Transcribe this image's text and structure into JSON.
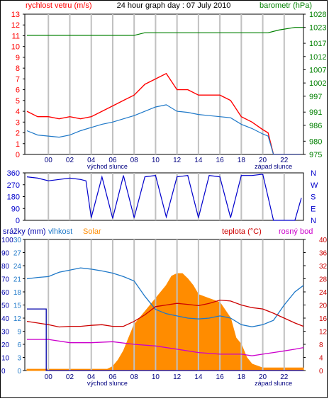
{
  "colors": {
    "wind": "#ff0000",
    "gust": "#ff0000",
    "baro": "#008000",
    "dir": "#0000cc",
    "hum": "#1e78c8",
    "solar": "#ff8c00",
    "temp": "#cc0000",
    "dew": "#cc00cc",
    "rain": "#0000aa",
    "grid": "#c0c0c0"
  },
  "charts": {
    "panel1": {
      "title": "24 hour graph day : 07 July 2010",
      "left_label": "rychlost vetru (m/s)",
      "right_label": "barometr (hPa)",
      "sunrise_label": "východ slunce",
      "sunset_label": "západ slunce"
    },
    "panel2": {
      "compass_labels": [
        "N",
        "W",
        "S",
        "E",
        "N"
      ]
    },
    "panel3": {
      "rain_label": "srážky (mm)",
      "hum_label": "vlhkost",
      "solar_label": "Solar",
      "temp_label": "teplota (°C)",
      "dew_label": "rosný bod",
      "sunrise_label": "východ slunce",
      "sunset_label": "západ slunce"
    }
  },
  "chart_data": [
    {
      "type": "line",
      "title": "24 hour graph day : 07 July 2010",
      "xlabel": "",
      "x_ticks": [
        "00",
        "02",
        "04",
        "06",
        "08",
        "10",
        "12",
        "14",
        "16",
        "18",
        "20",
        "22"
      ],
      "xlim": [
        -2.2,
        23.8
      ],
      "left_axis": {
        "label": "rychlost vetru (m/s)",
        "ylim": [
          0,
          13
        ],
        "ticks": [
          0,
          1,
          2,
          3,
          4,
          5,
          6,
          7,
          8,
          9,
          10,
          11,
          12,
          13
        ]
      },
      "right_axis": {
        "label": "barometr (hPa)",
        "ylim": [
          975,
          1028
        ],
        "ticks": [
          975,
          980,
          986,
          991,
          997,
          1002,
          1007,
          1012,
          1017,
          1023,
          1028
        ]
      },
      "series": [
        {
          "key": "gust",
          "axis": "left",
          "x": [
            -2,
            -1,
            0,
            1,
            2,
            3,
            4,
            5,
            6,
            7,
            8,
            9,
            10,
            11,
            12,
            13,
            14,
            15,
            16,
            17,
            18,
            19,
            20,
            20.5,
            21,
            23.5
          ],
          "values": [
            4,
            3.5,
            3.5,
            3.3,
            3.5,
            3.3,
            3.5,
            4,
            4.5,
            5,
            5.5,
            6.5,
            7,
            7.5,
            6,
            6,
            5.5,
            5.5,
            5.5,
            5,
            3.5,
            3,
            2.3,
            2,
            0,
            0
          ]
        },
        {
          "key": "wind",
          "axis": "left",
          "x": [
            -2,
            -1,
            0,
            1,
            2,
            3,
            4,
            5,
            6,
            7,
            8,
            9,
            10,
            11,
            12,
            13,
            14,
            15,
            16,
            17,
            18,
            19,
            20,
            20.5,
            21,
            23.5
          ],
          "values": [
            2.2,
            1.8,
            1.7,
            1.6,
            1.8,
            2.2,
            2.5,
            2.8,
            3.0,
            3.3,
            3.6,
            4.0,
            4.4,
            4.6,
            4.0,
            3.9,
            3.7,
            3.6,
            3.5,
            3.4,
            2.8,
            2.4,
            1.9,
            1.7,
            0,
            0
          ]
        },
        {
          "key": "baro",
          "axis": "right",
          "x": [
            -2,
            0,
            3,
            6,
            8,
            9,
            11,
            14,
            17,
            19,
            20.5,
            21.5,
            23,
            23.8
          ],
          "values": [
            1020,
            1020,
            1020,
            1020,
            1020,
            1021,
            1021,
            1021,
            1021,
            1021,
            1021,
            1022,
            1023,
            1023
          ]
        }
      ]
    },
    {
      "type": "scatter",
      "title": "",
      "xlim": [
        -2.2,
        23.8
      ],
      "ylim": [
        0,
        360
      ],
      "y_ticks": [
        0,
        90,
        180,
        270,
        360
      ],
      "series": [
        {
          "key": "dir",
          "x": [
            -2,
            -1,
            0,
            1,
            2,
            3,
            3.5,
            4,
            5,
            6,
            7,
            8,
            9,
            10,
            11,
            12,
            13,
            14,
            15,
            16,
            17,
            18,
            19,
            20,
            21,
            22,
            23,
            23.6
          ],
          "values": [
            330,
            320,
            300,
            310,
            320,
            310,
            300,
            20,
            330,
            15,
            340,
            20,
            330,
            340,
            25,
            330,
            340,
            20,
            340,
            330,
            20,
            340,
            340,
            350,
            0,
            0,
            0,
            170
          ]
        }
      ]
    },
    {
      "type": "line",
      "title": "",
      "x_ticks": [
        "00",
        "02",
        "04",
        "06",
        "08",
        "10",
        "12",
        "14",
        "16",
        "18",
        "20",
        "22"
      ],
      "xlim": [
        -2.2,
        23.8
      ],
      "axes": {
        "rain": {
          "label": "srážky (mm)",
          "ylim": [
            0,
            100
          ],
          "ticks": [
            0,
            10,
            20,
            30,
            40,
            50,
            60,
            70,
            80,
            90,
            100
          ]
        },
        "hum": {
          "label": "vlhkost",
          "ylim": [
            0,
            30
          ],
          "ticks": [
            0,
            3,
            6,
            9,
            12,
            15,
            18,
            21,
            24,
            27,
            30
          ]
        },
        "temp": {
          "label": "teplota (°C)",
          "ylim": [
            0,
            40
          ],
          "ticks": [
            0,
            4,
            8,
            12,
            16,
            20,
            24,
            28,
            32,
            36,
            40
          ]
        }
      },
      "series": [
        {
          "key": "solar",
          "name": "Solar",
          "axis": "rain",
          "x": [
            -2,
            4,
            5.5,
            6,
            6.5,
            7,
            7.5,
            8,
            9,
            10,
            11,
            11.5,
            12,
            12.5,
            13,
            13.5,
            14,
            15,
            16,
            17,
            17.5,
            18,
            18.5,
            19,
            20,
            23.8
          ],
          "values": [
            1,
            1,
            1,
            3,
            8,
            15,
            25,
            35,
            45,
            55,
            65,
            72,
            74,
            74,
            70,
            65,
            58,
            55,
            52,
            40,
            25,
            20,
            10,
            5,
            2,
            2
          ]
        },
        {
          "key": "hum",
          "name": "vlhkost",
          "axis": "hum",
          "x": [
            -2,
            -1,
            0,
            1,
            2,
            3,
            4,
            5,
            6,
            7,
            8,
            9,
            10,
            11,
            12,
            13,
            14,
            15,
            16,
            17,
            18,
            19,
            20,
            21,
            22,
            23,
            23.8
          ],
          "values": [
            21,
            21.3,
            21.5,
            22.5,
            23,
            23.5,
            23.2,
            22.8,
            22.3,
            21.5,
            20.5,
            17,
            14,
            13,
            12.5,
            12,
            11.8,
            12,
            12.5,
            12,
            10.5,
            10,
            10.5,
            11.5,
            15,
            18,
            19.5
          ]
        },
        {
          "key": "temp",
          "name": "teplota (°C)",
          "axis": "temp",
          "x": [
            -2,
            -1,
            0,
            1,
            2,
            3,
            4,
            5,
            6,
            7,
            8,
            9,
            10,
            11,
            12,
            13,
            14,
            15,
            16,
            17,
            18,
            19,
            20,
            21,
            22,
            23,
            23.8
          ],
          "values": [
            15,
            14.5,
            14,
            13.3,
            13.5,
            13.5,
            13.8,
            14,
            13.5,
            13.5,
            15,
            17,
            19.5,
            20,
            20.5,
            20.2,
            19.8,
            20.5,
            21.5,
            21.2,
            20,
            19.2,
            18.8,
            17.5,
            16,
            14.5,
            13.5
          ]
        },
        {
          "key": "dew",
          "name": "rosný bod",
          "axis": "temp",
          "x": [
            -2,
            0,
            2,
            4,
            6,
            8,
            10,
            12,
            14,
            16,
            18,
            19,
            20,
            21,
            22,
            23,
            23.8
          ],
          "values": [
            9.5,
            9.5,
            8.5,
            8.5,
            8.8,
            8,
            7.5,
            6.5,
            5.5,
            5,
            5,
            4.5,
            5,
            5.5,
            6,
            6.5,
            7
          ]
        },
        {
          "key": "rain",
          "name": "srážky (mm)",
          "axis": "rain",
          "x": [
            -2,
            -0.2,
            -0.2,
            23.8
          ],
          "values": [
            47,
            47,
            0,
            0
          ]
        }
      ]
    }
  ]
}
